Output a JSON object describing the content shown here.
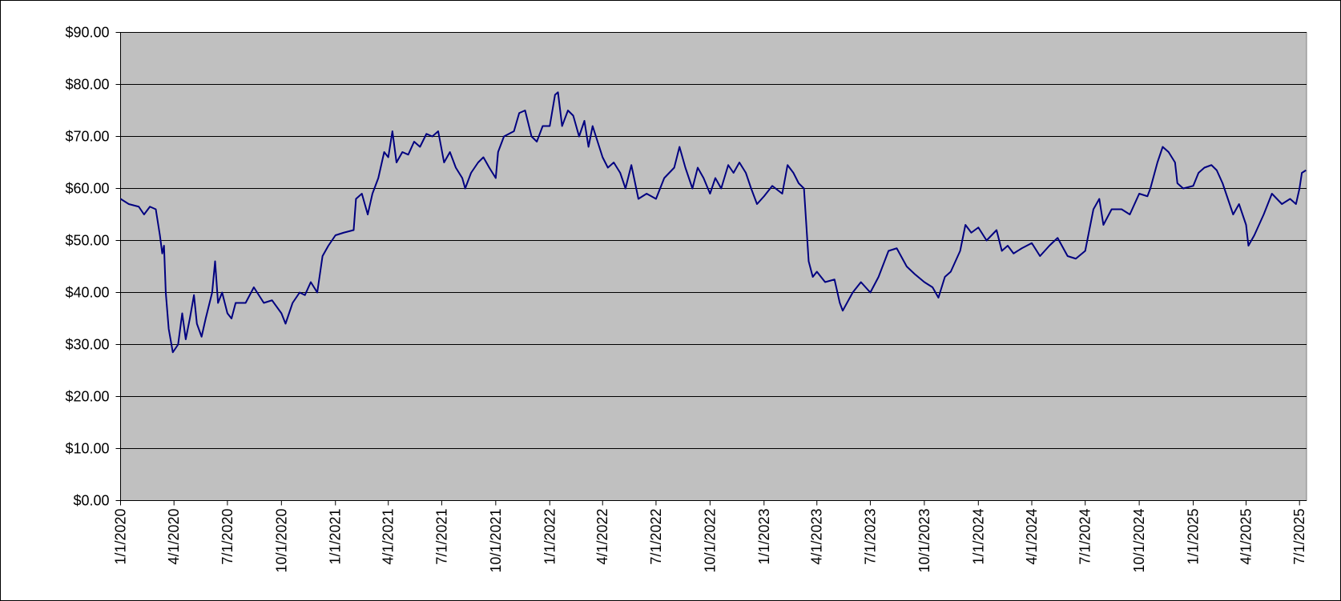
{
  "chart_data": {
    "type": "line",
    "color": "#000080",
    "grid": true,
    "xlim": [
      "2020-01-01",
      "2025-07-13"
    ],
    "ylim": [
      0,
      90
    ],
    "yticks": [
      {
        "value": 0,
        "label": "$0.00"
      },
      {
        "value": 10,
        "label": "$10.00"
      },
      {
        "value": 20,
        "label": "$20.00"
      },
      {
        "value": 30,
        "label": "$30.00"
      },
      {
        "value": 40,
        "label": "$40.00"
      },
      {
        "value": 50,
        "label": "$50.00"
      },
      {
        "value": 60,
        "label": "$60.00"
      },
      {
        "value": 70,
        "label": "$70.00"
      },
      {
        "value": 80,
        "label": "$80.00"
      },
      {
        "value": 90,
        "label": "$90.00"
      }
    ],
    "xticks": [
      {
        "value": "2020-01-01",
        "label": "1/1/2020"
      },
      {
        "value": "2020-04-01",
        "label": "4/1/2020"
      },
      {
        "value": "2020-07-01",
        "label": "7/1/2020"
      },
      {
        "value": "2020-10-01",
        "label": "10/1/2020"
      },
      {
        "value": "2021-01-01",
        "label": "1/1/2021"
      },
      {
        "value": "2021-04-01",
        "label": "4/1/2021"
      },
      {
        "value": "2021-07-01",
        "label": "7/1/2021"
      },
      {
        "value": "2021-10-01",
        "label": "10/1/2021"
      },
      {
        "value": "2022-01-01",
        "label": "1/1/2022"
      },
      {
        "value": "2022-04-01",
        "label": "4/1/2022"
      },
      {
        "value": "2022-07-01",
        "label": "7/1/2022"
      },
      {
        "value": "2022-10-01",
        "label": "10/1/2022"
      },
      {
        "value": "2023-01-01",
        "label": "1/1/2023"
      },
      {
        "value": "2023-04-01",
        "label": "4/1/2023"
      },
      {
        "value": "2023-07-01",
        "label": "7/1/2023"
      },
      {
        "value": "2023-10-01",
        "label": "10/1/2023"
      },
      {
        "value": "2024-01-01",
        "label": "1/1/2024"
      },
      {
        "value": "2024-04-01",
        "label": "4/1/2024"
      },
      {
        "value": "2024-07-01",
        "label": "7/1/2024"
      },
      {
        "value": "2024-10-01",
        "label": "10/1/2024"
      },
      {
        "value": "2025-01-01",
        "label": "1/1/2025"
      },
      {
        "value": "2025-04-01",
        "label": "4/1/2025"
      },
      {
        "value": "2025-07-01",
        "label": "7/1/2025"
      }
    ],
    "x": [
      "2020-01-01",
      "2020-01-15",
      "2020-02-01",
      "2020-02-10",
      "2020-02-20",
      "2020-03-01",
      "2020-03-08",
      "2020-03-12",
      "2020-03-15",
      "2020-03-18",
      "2020-03-23",
      "2020-03-30",
      "2020-04-08",
      "2020-04-15",
      "2020-04-21",
      "2020-04-28",
      "2020-05-05",
      "2020-05-10",
      "2020-05-18",
      "2020-05-25",
      "2020-06-05",
      "2020-06-10",
      "2020-06-15",
      "2020-06-22",
      "2020-07-01",
      "2020-07-08",
      "2020-07-15",
      "2020-08-01",
      "2020-08-15",
      "2020-09-01",
      "2020-09-15",
      "2020-10-01",
      "2020-10-08",
      "2020-10-20",
      "2020-11-01",
      "2020-11-10",
      "2020-11-20",
      "2020-12-01",
      "2020-12-10",
      "2020-12-20",
      "2021-01-01",
      "2021-01-15",
      "2021-02-01",
      "2021-02-05",
      "2021-02-15",
      "2021-02-25",
      "2021-03-05",
      "2021-03-15",
      "2021-03-25",
      "2021-04-01",
      "2021-04-08",
      "2021-04-15",
      "2021-04-25",
      "2021-05-05",
      "2021-05-15",
      "2021-05-25",
      "2021-06-05",
      "2021-06-15",
      "2021-06-25",
      "2021-07-05",
      "2021-07-15",
      "2021-07-25",
      "2021-08-05",
      "2021-08-10",
      "2021-08-20",
      "2021-09-01",
      "2021-09-10",
      "2021-09-20",
      "2021-10-01",
      "2021-10-05",
      "2021-10-15",
      "2021-11-01",
      "2021-11-10",
      "2021-11-20",
      "2021-12-01",
      "2021-12-10",
      "2021-12-20",
      "2022-01-01",
      "2022-01-10",
      "2022-01-15",
      "2022-01-22",
      "2022-02-01",
      "2022-02-10",
      "2022-02-20",
      "2022-03-01",
      "2022-03-08",
      "2022-03-15",
      "2022-04-01",
      "2022-04-10",
      "2022-04-20",
      "2022-05-01",
      "2022-05-10",
      "2022-05-20",
      "2022-06-01",
      "2022-06-15",
      "2022-07-01",
      "2022-07-15",
      "2022-08-01",
      "2022-08-10",
      "2022-08-20",
      "2022-09-01",
      "2022-09-10",
      "2022-09-20",
      "2022-10-01",
      "2022-10-10",
      "2022-10-20",
      "2022-11-01",
      "2022-11-10",
      "2022-11-20",
      "2022-12-01",
      "2022-12-10",
      "2022-12-20",
      "2023-01-01",
      "2023-01-15",
      "2023-02-01",
      "2023-02-10",
      "2023-02-20",
      "2023-03-01",
      "2023-03-10",
      "2023-03-18",
      "2023-03-25",
      "2023-04-01",
      "2023-04-15",
      "2023-05-01",
      "2023-05-10",
      "2023-05-15",
      "2023-06-01",
      "2023-06-15",
      "2023-07-01",
      "2023-07-15",
      "2023-08-01",
      "2023-08-15",
      "2023-09-01",
      "2023-09-15",
      "2023-10-01",
      "2023-10-15",
      "2023-10-25",
      "2023-11-05",
      "2023-11-15",
      "2023-12-01",
      "2023-12-10",
      "2023-12-20",
      "2024-01-01",
      "2024-01-15",
      "2024-02-01",
      "2024-02-10",
      "2024-02-20",
      "2024-03-01",
      "2024-03-15",
      "2024-04-01",
      "2024-04-15",
      "2024-05-01",
      "2024-05-15",
      "2024-06-01",
      "2024-06-15",
      "2024-07-01",
      "2024-07-08",
      "2024-07-15",
      "2024-07-25",
      "2024-08-01",
      "2024-08-15",
      "2024-09-01",
      "2024-09-15",
      "2024-10-01",
      "2024-10-15",
      "2024-10-20",
      "2024-11-01",
      "2024-11-10",
      "2024-11-20",
      "2024-12-01",
      "2024-12-05",
      "2024-12-15",
      "2025-01-01",
      "2025-01-10",
      "2025-01-20",
      "2025-02-01",
      "2025-02-10",
      "2025-02-20",
      "2025-03-01",
      "2025-03-10",
      "2025-03-20",
      "2025-04-01",
      "2025-04-05",
      "2025-04-15",
      "2025-05-01",
      "2025-05-15",
      "2025-06-01",
      "2025-06-15",
      "2025-06-25",
      "2025-07-01",
      "2025-07-05",
      "2025-07-12"
    ],
    "values": [
      58,
      57,
      56.5,
      55,
      56.5,
      56,
      51,
      47.5,
      49,
      40,
      33,
      28.5,
      30,
      36,
      31,
      35,
      39.5,
      34,
      31.5,
      35,
      40,
      46,
      38,
      40,
      36,
      35,
      38,
      38,
      41,
      38,
      38.5,
      36,
      34,
      38,
      40,
      39.5,
      42,
      40,
      47,
      49,
      51,
      51.5,
      52,
      58,
      59,
      55,
      59,
      62,
      67,
      66,
      71,
      65,
      67,
      66.5,
      69,
      68,
      70.5,
      70,
      71,
      65,
      67,
      64,
      62,
      60,
      63,
      65,
      66,
      64,
      62,
      67,
      70,
      71,
      74.5,
      75,
      70,
      69,
      72,
      72,
      78,
      78.5,
      72,
      75,
      74,
      70,
      73,
      68,
      72,
      66,
      64,
      65,
      63,
      60,
      64.5,
      58,
      59,
      58,
      62,
      64,
      68,
      64,
      60,
      64,
      62,
      59,
      62,
      60,
      64.5,
      63,
      65,
      63,
      60,
      57,
      58.5,
      60.5,
      59,
      64.5,
      63,
      61,
      60,
      46,
      43,
      44,
      42,
      42.5,
      38,
      36.5,
      40,
      42,
      40,
      43,
      48,
      48.5,
      45,
      43.5,
      42,
      41,
      39,
      43,
      44,
      48,
      53,
      51.5,
      52.5,
      50,
      52,
      48,
      49,
      47.5,
      48.5,
      49.5,
      47,
      49,
      50.5,
      47,
      46.5,
      48,
      52,
      56,
      58,
      53,
      56,
      56,
      55,
      59,
      58.5,
      60,
      65,
      68,
      67,
      65,
      61,
      60,
      60.5,
      63,
      64,
      64.5,
      63.5,
      61,
      58,
      55,
      57,
      53,
      49,
      51,
      55,
      59,
      57,
      58,
      57,
      60,
      63,
      63.5
    ]
  }
}
